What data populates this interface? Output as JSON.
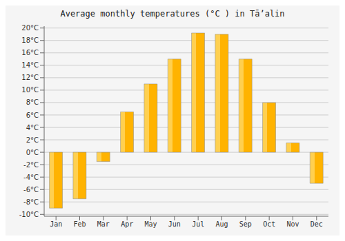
{
  "chart_data": {
    "type": "bar",
    "title": "Average monthly temperatures (°C ) in Tāʼalin",
    "categories": [
      "Jan",
      "Feb",
      "Mar",
      "Apr",
      "May",
      "Jun",
      "Jul",
      "Aug",
      "Sep",
      "Oct",
      "Nov",
      "Dec"
    ],
    "values": [
      -9,
      -7.5,
      -1.5,
      6.5,
      11,
      15,
      19.2,
      19,
      15,
      8,
      1.5,
      -5
    ],
    "color": "#FFB300",
    "ylim": [
      -10.3,
      20.3
    ],
    "yticks": [
      {
        "value": -10,
        "label": "-10°C"
      },
      {
        "value": -8,
        "label": "-8°C"
      },
      {
        "value": -6,
        "label": "-6°C"
      },
      {
        "value": -4,
        "label": "-4°C"
      },
      {
        "value": -2,
        "label": "-2°C"
      },
      {
        "value": 0,
        "label": "0°C"
      },
      {
        "value": 2,
        "label": "2°C"
      },
      {
        "value": 4,
        "label": "4°C"
      },
      {
        "value": 6,
        "label": "6°C"
      },
      {
        "value": 8,
        "label": "8°C"
      },
      {
        "value": 10,
        "label": "10°C"
      },
      {
        "value": 12,
        "label": "12°C"
      },
      {
        "value": 14,
        "label": "14°C"
      },
      {
        "value": 16,
        "label": "16°C"
      },
      {
        "value": 18,
        "label": "18°C"
      },
      {
        "value": 20,
        "label": "20°C"
      }
    ],
    "grid": true
  }
}
